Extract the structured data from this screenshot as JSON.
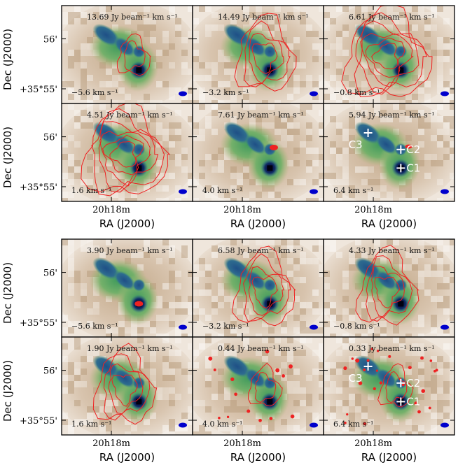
{
  "chart_data": {
    "type": "channel-map",
    "flux_unit_text": "Jy beam⁻¹ km s⁻¹",
    "velocity_unit_text": "km s⁻¹",
    "xlabel": "RA (J2000)",
    "ylabel": "Dec (J2000)",
    "xtick_label": "20h18m",
    "ytick_labels": [
      "56'",
      "+35°55'"
    ],
    "core_labels": [
      "C1",
      "C2",
      "C3"
    ],
    "contour_color": "#ee2222",
    "beam_color": "#0000cc",
    "groups": [
      {
        "panels": [
          {
            "flux": 13.69,
            "velocity": -5.6,
            "contour_level": 1
          },
          {
            "flux": 14.49,
            "velocity": -3.2,
            "contour_level": 2
          },
          {
            "flux": 6.61,
            "velocity": -0.8,
            "contour_level": 3
          },
          {
            "flux": 4.51,
            "velocity": 1.6,
            "contour_level": 3
          },
          {
            "flux": 7.61,
            "velocity": 4.0,
            "contour_level": 0
          },
          {
            "flux": 5.94,
            "velocity": 6.4,
            "contour_level": 0,
            "show_cores": true
          }
        ]
      },
      {
        "panels": [
          {
            "flux": 3.9,
            "velocity": -5.6,
            "contour_level": 0
          },
          {
            "flux": 6.58,
            "velocity": -3.2,
            "contour_level": 2
          },
          {
            "flux": 4.33,
            "velocity": -0.8,
            "contour_level": 2
          },
          {
            "flux": 1.9,
            "velocity": 1.6,
            "contour_level": 2
          },
          {
            "flux": 0.44,
            "velocity": 4.0,
            "contour_level": 1
          },
          {
            "flux": 0.33,
            "velocity": 6.4,
            "contour_level": 1,
            "show_cores": true
          }
        ]
      }
    ]
  }
}
